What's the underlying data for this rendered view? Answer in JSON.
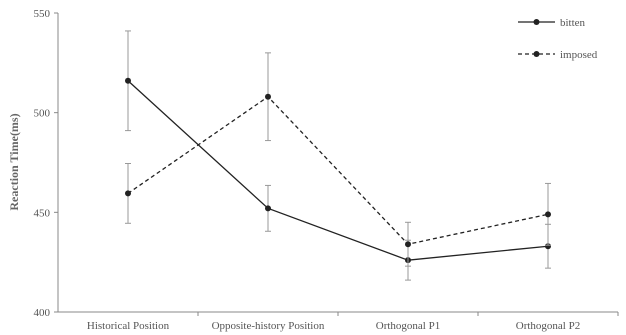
{
  "chart_data": {
    "type": "line",
    "title": "",
    "xlabel": "",
    "ylabel": "Reaction Time(ms)",
    "ylim": [
      400,
      550
    ],
    "yticks": [
      400,
      450,
      500,
      550
    ],
    "grid": false,
    "legend_position": "top-right",
    "categories": [
      "Historical Position",
      "Opposite-history Position",
      "Orthogonal P1",
      "Orthogonal P2"
    ],
    "series": [
      {
        "name": "bitten",
        "style": "solid",
        "color": "#222222",
        "values": [
          516,
          452,
          426,
          433
        ],
        "error": [
          25,
          11.5,
          10,
          11
        ]
      },
      {
        "name": "imposed",
        "style": "dashed",
        "color": "#222222",
        "values": [
          459.5,
          508,
          434,
          449
        ],
        "error": [
          15,
          22,
          11,
          15.5
        ]
      }
    ]
  }
}
